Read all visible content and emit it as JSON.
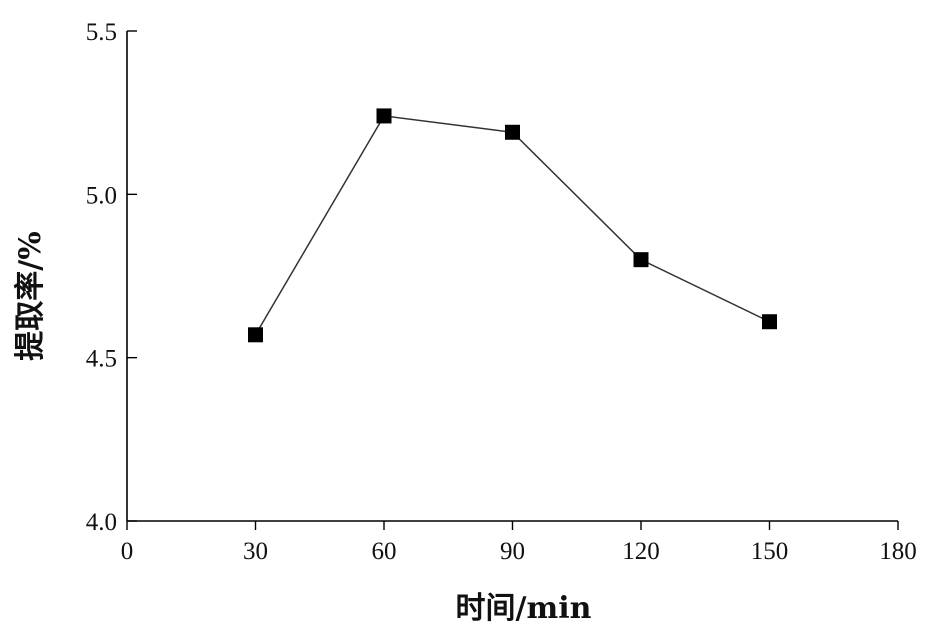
{
  "chart_data": {
    "type": "line",
    "title": "",
    "xlabel": "时间/min",
    "ylabel": "提取率/%",
    "xlim": [
      0,
      180
    ],
    "ylim": [
      4.0,
      5.5
    ],
    "xticks": [
      0,
      30,
      60,
      90,
      120,
      150,
      180
    ],
    "yticks": [
      4.0,
      4.5,
      5.0,
      5.5
    ],
    "ytick_labels": [
      "4.0",
      "4.5",
      "5.0",
      "5.5"
    ],
    "grid": false,
    "legend": "none",
    "series": [
      {
        "x": [
          30,
          60,
          90,
          120,
          150
        ],
        "y": [
          4.57,
          5.24,
          5.19,
          4.8,
          4.61
        ],
        "marker": "square",
        "color": "#000000"
      }
    ]
  }
}
